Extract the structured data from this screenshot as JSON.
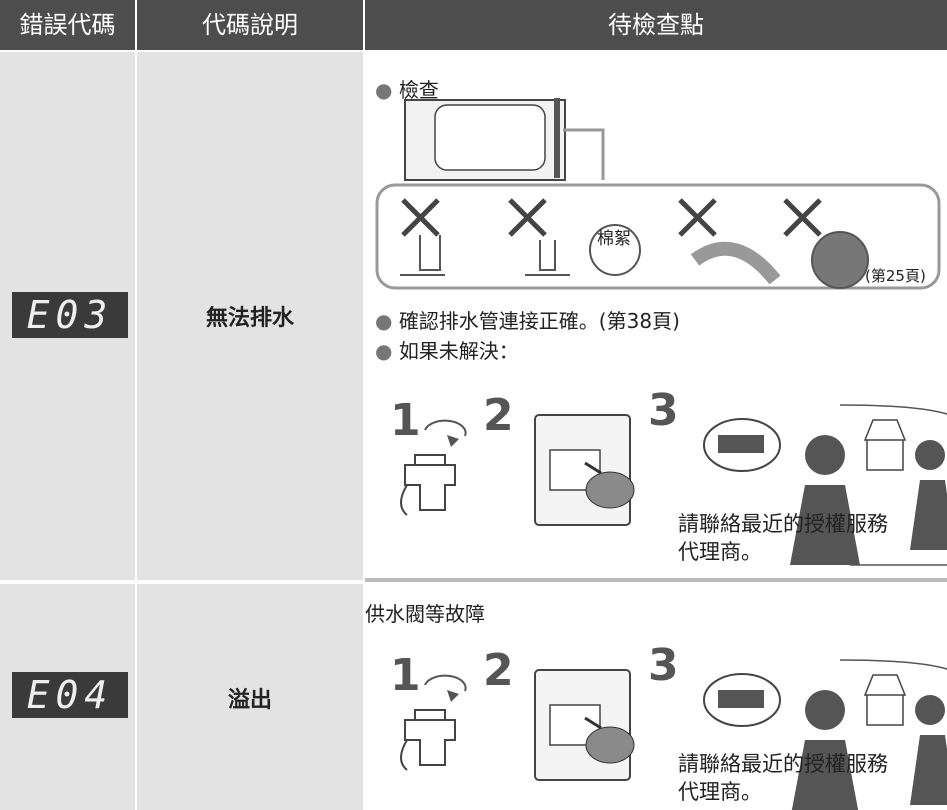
{
  "table": {
    "headers": [
      "錯誤代碼",
      "代碼說明",
      "待檢查點"
    ],
    "rows": [
      {
        "code": "E03",
        "description": "無法排水",
        "checks": {
          "check": "檢查",
          "lint_label": "棉絮",
          "page_ref": "(第25頁)",
          "confirm": "確認排水管連接正確。(第38頁)",
          "unresolved": "如果未解決：",
          "steps": [
            1,
            2,
            3
          ],
          "contact": "請聯絡最近的授權服務代理商。"
        }
      },
      {
        "code": "E04",
        "description": "溢出",
        "checks": {
          "fault": "供水閥等故障",
          "steps": [
            1,
            2,
            3
          ],
          "contact": "請聯絡最近的授權服務代理商。"
        }
      }
    ]
  }
}
